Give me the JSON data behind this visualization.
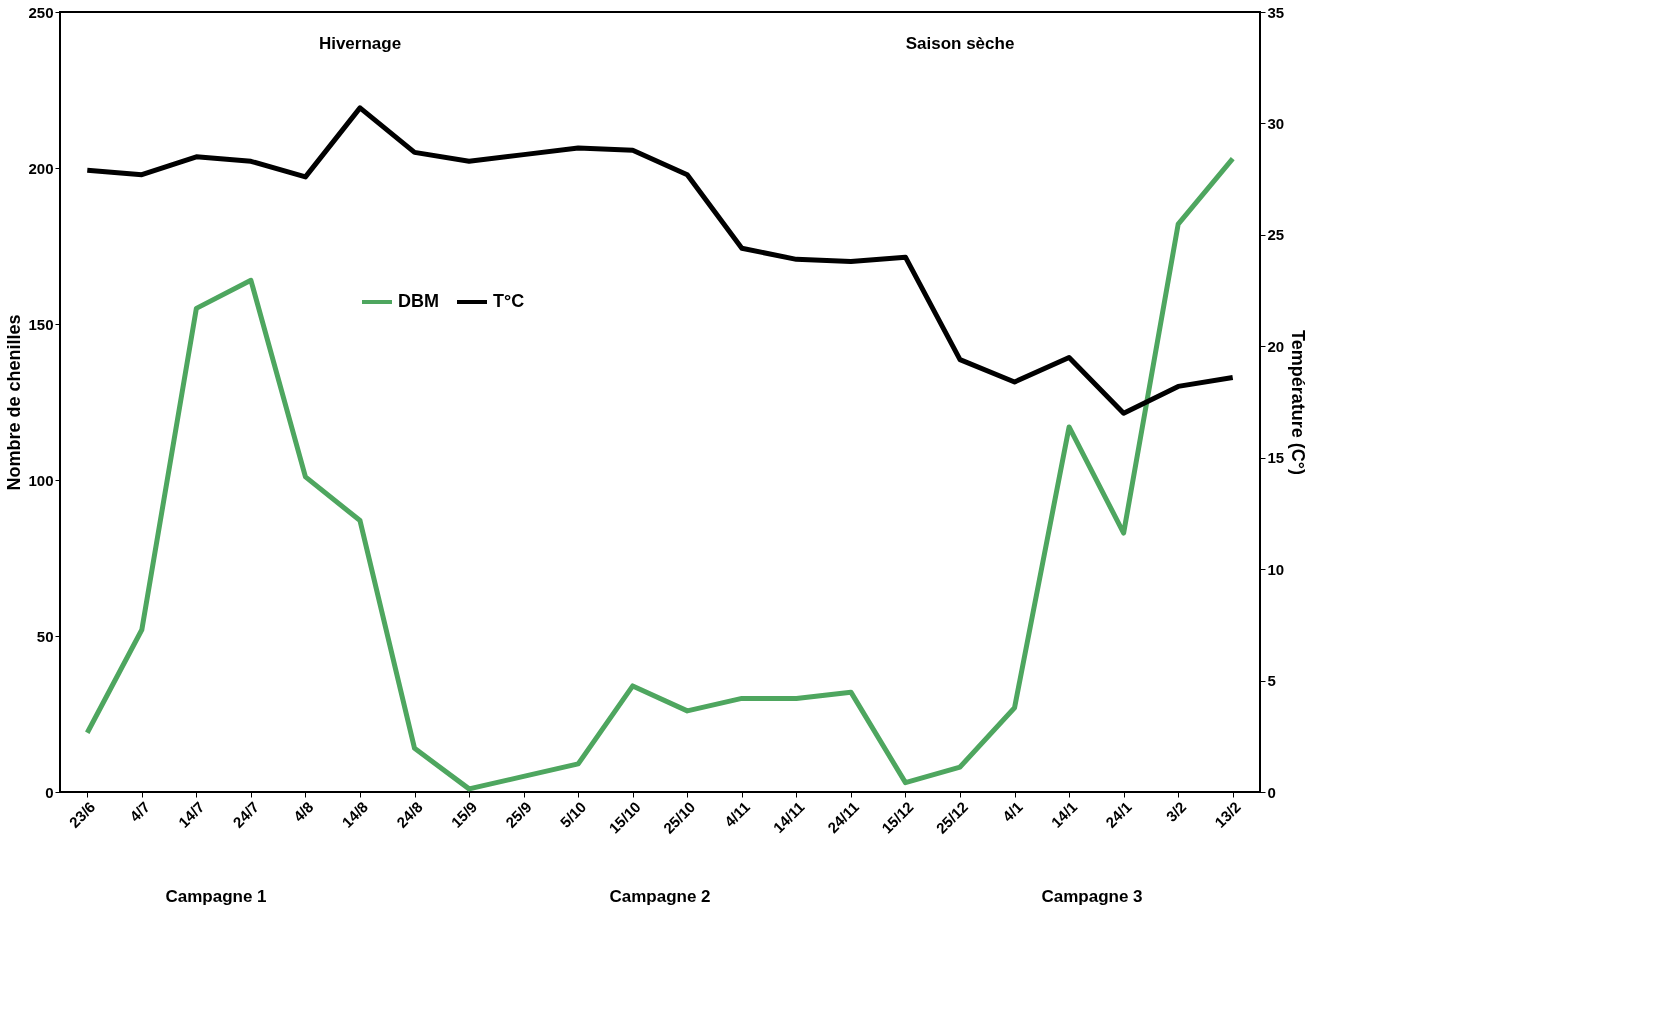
{
  "chart_data": {
    "type": "line",
    "xlabel": null,
    "ylabel": "Nombre de chenilles",
    "y2label": "Température (C°)",
    "categories": [
      "23/6",
      "4/7",
      "14/7",
      "24/7",
      "4/8",
      "14/8",
      "24/8",
      "15/9",
      "25/9",
      "5/10",
      "15/10",
      "25/10",
      "4/11",
      "14/11",
      "24/11",
      "15/12",
      "25/12",
      "4/1",
      "14/1",
      "24/1",
      "3/2",
      "13/2"
    ],
    "series": [
      {
        "name": "DBM",
        "color": "#4ea65f",
        "values": [
          19,
          52,
          155,
          164,
          101,
          87,
          14,
          1,
          5,
          9,
          34,
          26,
          30,
          30,
          32,
          3,
          8,
          27,
          117,
          83,
          182,
          203
        ]
      },
      {
        "name": "T°C",
        "color": "#000000",
        "axis": "y2",
        "values": [
          27.9,
          27.7,
          28.5,
          28.3,
          27.6,
          30.7,
          28.7,
          28.3,
          28.6,
          28.9,
          28.8,
          27.7,
          24.4,
          23.9,
          23.8,
          24.0,
          19.4,
          18.4,
          19.5,
          17.0,
          18.2,
          18.6
        ]
      }
    ],
    "ylim": [
      0,
      250
    ],
    "yticks": [
      0,
      50,
      100,
      150,
      200,
      250
    ],
    "y2lim": [
      0,
      35
    ],
    "y2ticks": [
      0,
      5,
      10,
      15,
      20,
      25,
      30,
      35
    ],
    "annotations": [
      "Hivernage",
      "Saison sèche",
      "Campagne 1",
      "Campagne 2",
      "Campagne 3"
    ],
    "grid": false,
    "legend": "top left",
    "line_style": "solid",
    "marker": "none"
  }
}
